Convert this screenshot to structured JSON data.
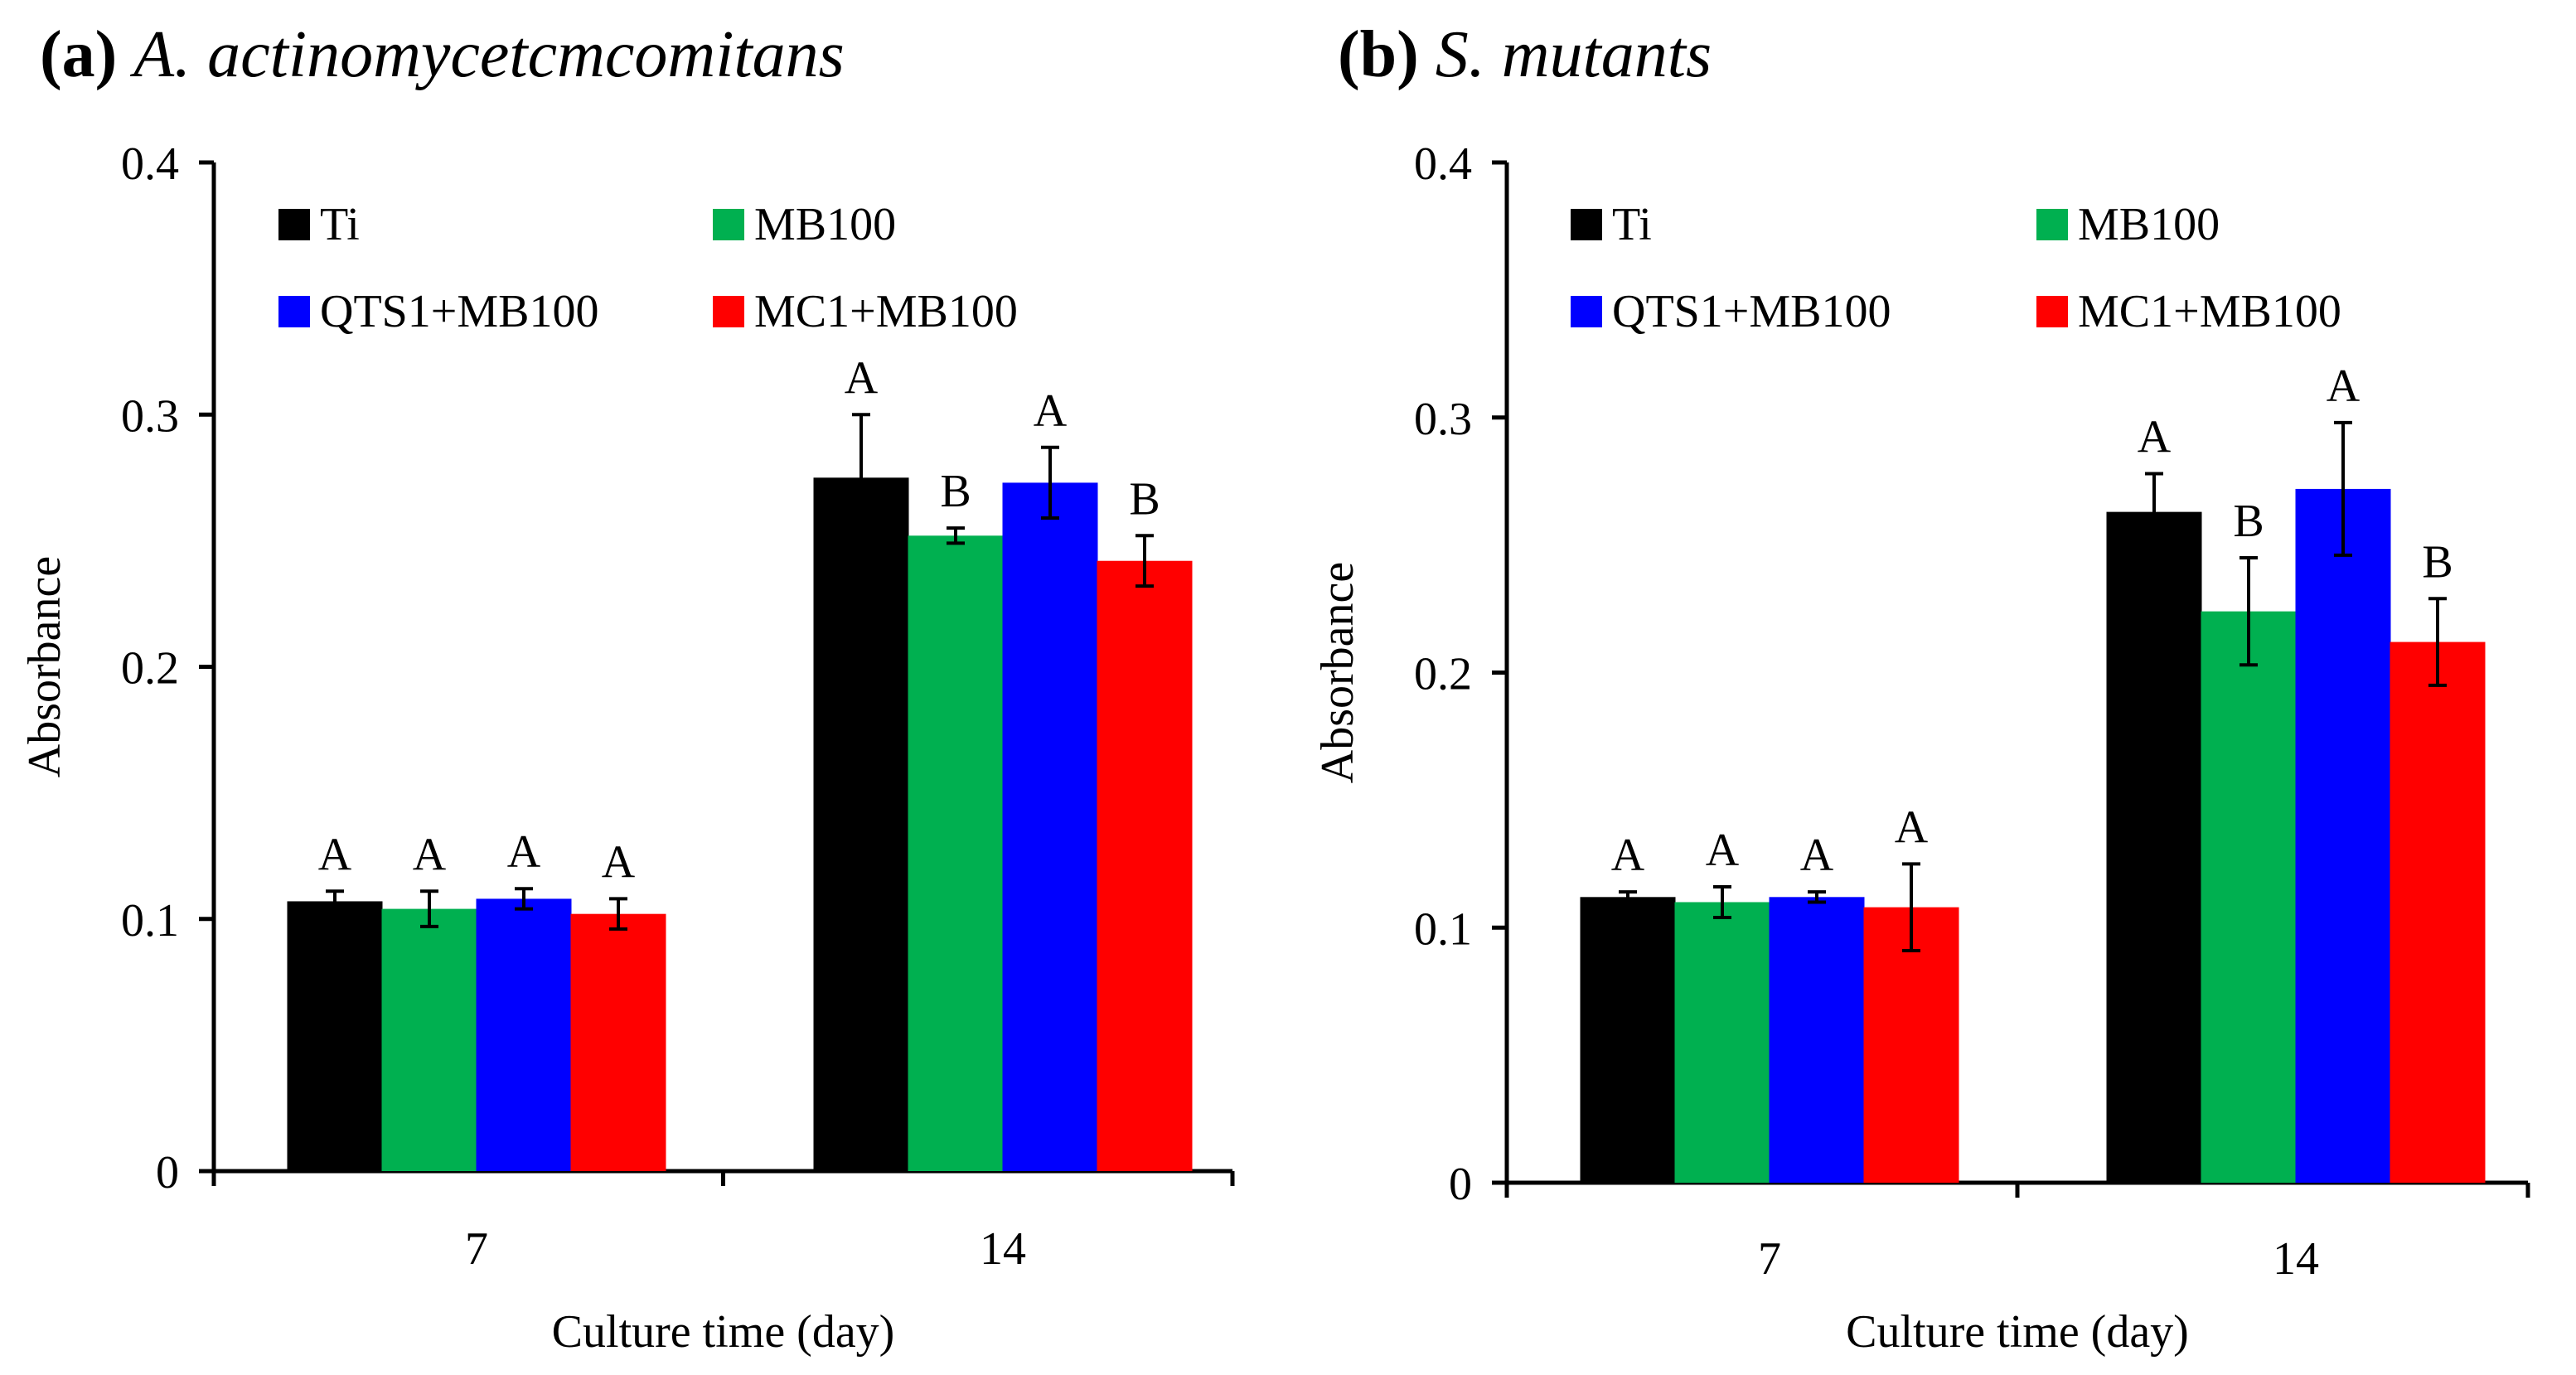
{
  "chart_data": [
    {
      "id": "a",
      "type": "bar",
      "panel_letter": "(a)",
      "title": "A. actinomycetcmcomitans",
      "xlabel": "Culture time (day)",
      "ylabel": "Absorbance",
      "ylim": [
        0,
        0.4
      ],
      "yticks": [
        "0",
        "0.1",
        "0.2",
        "0.3",
        "0.4"
      ],
      "categories": [
        "7",
        "14"
      ],
      "legend_position": "top-left, inside",
      "series": [
        {
          "name": "Ti",
          "color": "#000000",
          "values": [
            0.107,
            0.275
          ],
          "errors": [
            0.004,
            0.025
          ],
          "labels": [
            "A",
            "A"
          ]
        },
        {
          "name": "MB100",
          "color": "#00b050",
          "values": [
            0.104,
            0.252
          ],
          "errors": [
            0.007,
            0.003
          ],
          "labels": [
            "A",
            "B"
          ]
        },
        {
          "name": "QTS1+MB100",
          "color": "#0000ff",
          "values": [
            0.108,
            0.273
          ],
          "errors": [
            0.004,
            0.014
          ],
          "labels": [
            "A",
            "A"
          ]
        },
        {
          "name": "MC1+MB100",
          "color": "#ff0000",
          "values": [
            0.102,
            0.242
          ],
          "errors": [
            0.006,
            0.01
          ],
          "labels": [
            "A",
            "B"
          ]
        }
      ]
    },
    {
      "id": "b",
      "type": "bar",
      "panel_letter": "(b)",
      "title": "S. mutants",
      "xlabel": "Culture time (day)",
      "ylabel": "Absorbance",
      "ylim": [
        0,
        0.4
      ],
      "yticks": [
        "0",
        "0.1",
        "0.2",
        "0.3",
        "0.4"
      ],
      "categories": [
        "7",
        "14"
      ],
      "legend_position": "top-left, inside",
      "series": [
        {
          "name": "Ti",
          "color": "#000000",
          "values": [
            0.112,
            0.263
          ],
          "errors": [
            0.002,
            0.015
          ],
          "labels": [
            "A",
            "A"
          ]
        },
        {
          "name": "MB100",
          "color": "#00b050",
          "values": [
            0.11,
            0.224
          ],
          "errors": [
            0.006,
            0.021
          ],
          "labels": [
            "A",
            "B"
          ]
        },
        {
          "name": "QTS1+MB100",
          "color": "#0000ff",
          "values": [
            0.112,
            0.272
          ],
          "errors": [
            0.002,
            0.026
          ],
          "labels": [
            "A",
            "A"
          ]
        },
        {
          "name": "MC1+MB100",
          "color": "#ff0000",
          "values": [
            0.108,
            0.212
          ],
          "errors": [
            0.017,
            0.017
          ],
          "labels": [
            "A",
            "B"
          ]
        }
      ]
    }
  ]
}
